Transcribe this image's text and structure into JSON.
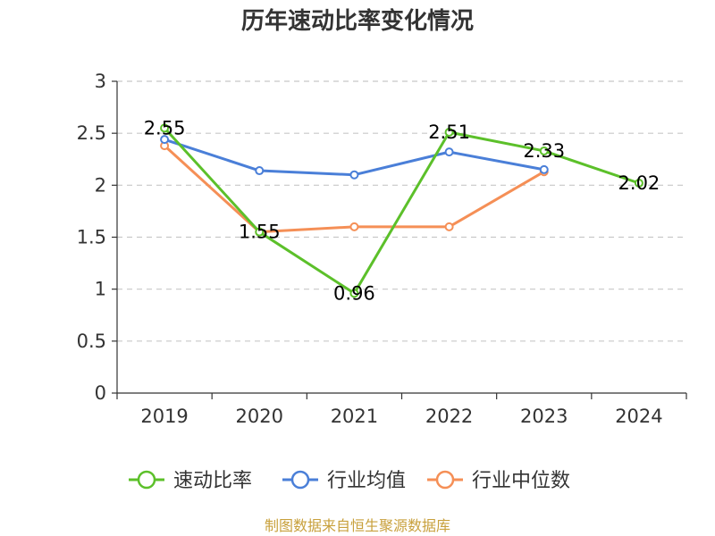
{
  "chart_data": {
    "type": "line",
    "title": "历年速动比率变化情况",
    "categories": [
      "2019",
      "2020",
      "2021",
      "2022",
      "2023",
      "2024"
    ],
    "ylim": [
      0,
      3
    ],
    "yticks": [
      "0",
      "0.5",
      "1",
      "1.5",
      "2",
      "2.5",
      "3"
    ],
    "ytick_values": [
      0,
      0.5,
      1,
      1.5,
      2,
      2.5,
      3
    ],
    "grid": true,
    "legend_position": "bottom",
    "series": [
      {
        "name": "速动比率",
        "color": "#5cc02a",
        "values": [
          2.55,
          1.55,
          0.96,
          2.51,
          2.33,
          2.02
        ],
        "labels": [
          "2.55",
          "1.55",
          "0.96",
          "2.51",
          "2.33",
          "2.02"
        ],
        "show_labels": true
      },
      {
        "name": "行业均值",
        "color": "#4a7fd8",
        "values": [
          2.44,
          2.14,
          2.1,
          2.32,
          2.15,
          null
        ],
        "show_labels": false
      },
      {
        "name": "行业中位数",
        "color": "#f58f56",
        "values": [
          2.38,
          1.55,
          1.6,
          1.6,
          2.13,
          null
        ],
        "show_labels": false
      }
    ],
    "source": "制图数据来自恒生聚源数据库"
  }
}
